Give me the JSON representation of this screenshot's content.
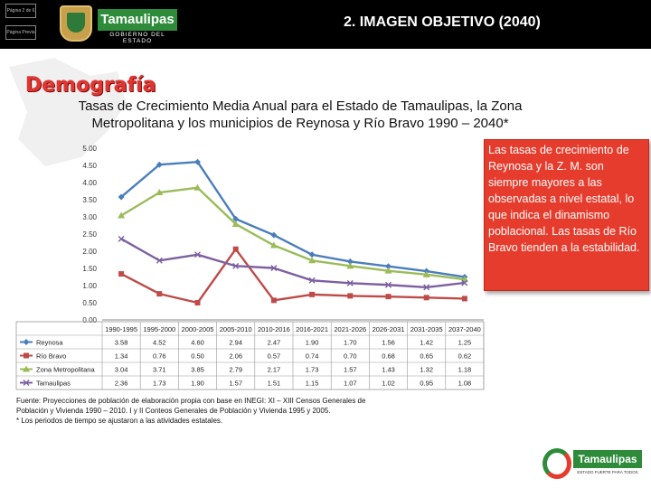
{
  "header": {
    "tab1_label": "Página 2 de 6",
    "tab2_label": "Página Previa",
    "brand_name": "Tamaulipas",
    "brand_sub": "GOBIERNO DEL ESTADO",
    "title": "2. IMAGEN OBJETIVO (2040)"
  },
  "section_title": "Demografía",
  "subtitle_line1": "Tasas de Crecimiento Media Anual para el Estado de Tamaulipas, la Zona",
  "subtitle_line2": "Metropolitana y los municipios de Reynosa y Río Bravo 1990 – 2040*",
  "note_text": "Las tasas de crecimiento de Reynosa y la Z. M. son  siempre mayores a las observadas a nivel estatal, lo que indica el dinamismo poblacional. Las tasas de Río Bravo tienden a la estabilidad.",
  "source_lines": [
    "Fuente: Proyecciones de población de elaboración propia con base en INEGI: XI – XIII Censos Generales de",
    "Población y Vivienda 1990 – 2010. I y II Conteos Generales  de Población y Vivienda 1995 y 2005.",
    "* Los periodos de tiempo se ajustaron a las atividades estatales."
  ],
  "footer": {
    "brand": "Tamaulipas",
    "sub": "ESTADO FUERTE PARA TODOS"
  },
  "colors": {
    "reynosa": "#4a7ebb",
    "riobravo": "#be4b48",
    "zm": "#9bbb59",
    "tamaulipas": "#7d60a0",
    "note_bg": "#e53c2d",
    "title_red": "#e3342f"
  },
  "chart_data": {
    "type": "line",
    "categories": [
      "1990-1995",
      "1995-2000",
      "2000-2005",
      "2005-2010",
      "2010-2016",
      "2016-2021",
      "2021-2026",
      "2026-2031",
      "2031-2035",
      "2037-2040"
    ],
    "ylim": [
      0,
      5
    ],
    "yticks": [
      "0.00",
      "0.50",
      "1.00",
      "1.50",
      "2.00",
      "2.50",
      "3.00",
      "3.50",
      "4.00",
      "4.50",
      "5.00"
    ],
    "series": [
      {
        "name": "Reynosa",
        "values": [
          3.58,
          4.52,
          4.6,
          2.94,
          2.47,
          1.9,
          1.7,
          1.56,
          1.42,
          1.25
        ],
        "labels": [
          "3.58",
          "4.52",
          "4.60",
          "2.94",
          "2.47",
          "1.90",
          "1.70",
          "1.56",
          "1.42",
          "1.25"
        ],
        "color": "#4a7ebb",
        "marker": "diamond"
      },
      {
        "name": "Río Bravo",
        "values": [
          1.34,
          0.76,
          0.5,
          2.06,
          0.57,
          0.74,
          0.7,
          0.68,
          0.65,
          0.62
        ],
        "labels": [
          "1.34",
          "0.76",
          "0.50",
          "2.06",
          "0.57",
          "0.74",
          "0.70",
          "0.68",
          "0.65",
          "0.62"
        ],
        "color": "#be4b48",
        "marker": "square"
      },
      {
        "name": "Zona Metropolitana",
        "values": [
          3.04,
          3.71,
          3.85,
          2.79,
          2.17,
          1.73,
          1.57,
          1.43,
          1.32,
          1.18
        ],
        "labels": [
          "3.04",
          "3.71",
          "3.85",
          "2.79",
          "2.17",
          "1.73",
          "1.57",
          "1.43",
          "1.32",
          "1.18"
        ],
        "color": "#9bbb59",
        "marker": "triangle"
      },
      {
        "name": "Tamaulipas",
        "values": [
          2.36,
          1.73,
          1.9,
          1.57,
          1.51,
          1.15,
          1.07,
          1.02,
          0.95,
          1.08
        ],
        "labels": [
          "2.36",
          "1.73",
          "1.90",
          "1.57",
          "1.51",
          "1.15",
          "1.07",
          "1.02",
          "0.95",
          "1.08"
        ],
        "color": "#7d60a0",
        "marker": "x"
      }
    ]
  }
}
